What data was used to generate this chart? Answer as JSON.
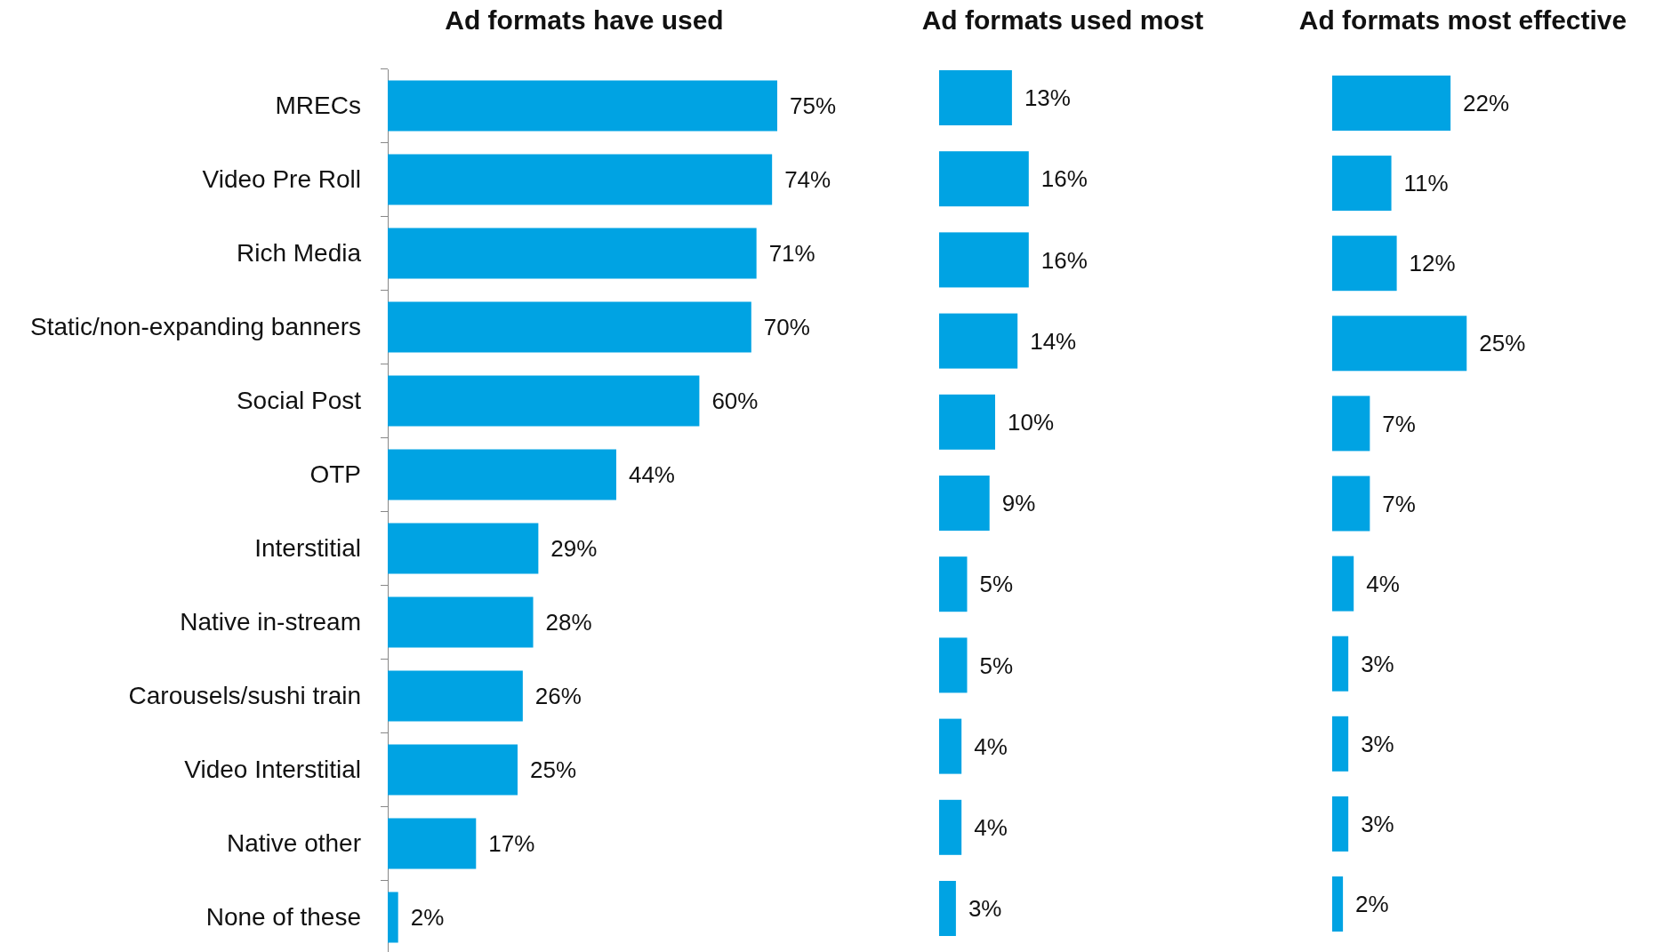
{
  "chart_data": [
    {
      "type": "bar",
      "orientation": "horizontal",
      "title": "Ad formats have used",
      "tick_labels": "y",
      "color": "#00a3e3",
      "categories": [
        "MRECs",
        "Video Pre Roll",
        "Rich Media",
        "Static/non-expanding banners",
        "Social Post",
        "OTP",
        "Interstitial",
        "Native in-stream",
        "Carousels/sushi train",
        "Video Interstitial",
        "Native other",
        "None of these"
      ],
      "values": [
        75,
        74,
        71,
        70,
        60,
        44,
        29,
        28,
        26,
        25,
        17,
        2
      ],
      "value_labels": [
        "75%",
        "74%",
        "71%",
        "70%",
        "60%",
        "44%",
        "29%",
        "28%",
        "26%",
        "25%",
        "17%",
        "2%"
      ]
    },
    {
      "type": "bar",
      "orientation": "horizontal",
      "title": "Ad formats used most",
      "tick_labels": false,
      "color": "#00a3e3",
      "categories": [
        null,
        null,
        null,
        null,
        null,
        null,
        null,
        null,
        null,
        null,
        null
      ],
      "values": [
        13,
        16,
        16,
        14,
        10,
        9,
        5,
        5,
        4,
        4,
        3
      ],
      "value_labels": [
        "13%",
        "16%",
        "16%",
        "14%",
        "10%",
        "9%",
        "5%",
        "5%",
        "4%",
        "4%",
        "3%"
      ]
    },
    {
      "type": "bar",
      "orientation": "horizontal",
      "title": "Ad formats most effective",
      "tick_labels": false,
      "color": "#00a3e3",
      "categories": [
        null,
        null,
        null,
        null,
        null,
        null,
        null,
        null,
        null,
        null,
        null
      ],
      "values": [
        22,
        11,
        12,
        25,
        7,
        7,
        4,
        3,
        3,
        3,
        2
      ],
      "value_labels": [
        "22%",
        "11%",
        "12%",
        "25%",
        "7%",
        "7%",
        "4%",
        "3%",
        "3%",
        "3%",
        "2%"
      ]
    }
  ]
}
